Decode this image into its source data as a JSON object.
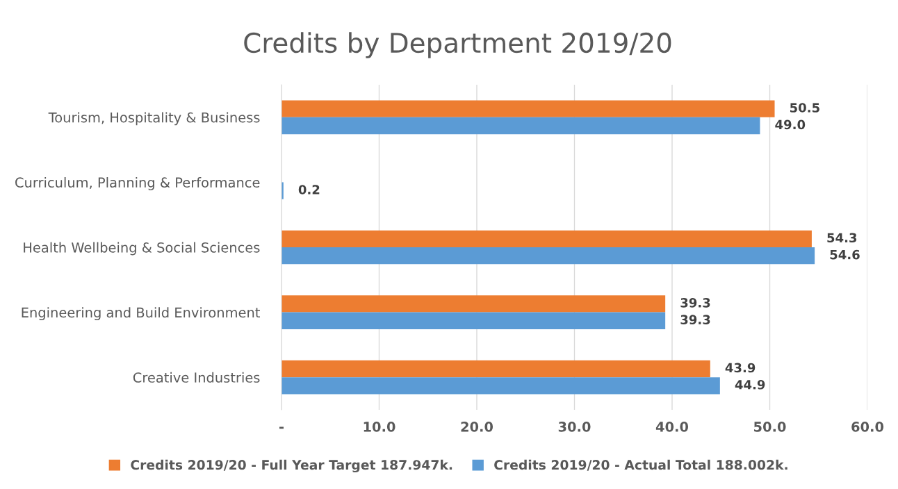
{
  "chart_data": {
    "type": "bar",
    "orientation": "horizontal",
    "title": "Credits by Department 2019/20",
    "categories": [
      "Tourism, Hospitality & Business",
      "Curriculum, Planning & Performance",
      "Health Wellbeing & Social Sciences",
      "Engineering and Build Environment",
      "Creative Industries"
    ],
    "series": [
      {
        "name": "Credits 2019/20 - Full Year Target 187.947k.",
        "color": "#ed7d31",
        "values": [
          50.5,
          null,
          54.3,
          39.3,
          43.9
        ],
        "value_labels": [
          "50.5",
          null,
          "54.3",
          "39.3",
          "43.9"
        ]
      },
      {
        "name": "Credits 2019/20 - Actual Total 188.002k.",
        "color": "#5b9bd5",
        "values": [
          49.0,
          0.2,
          54.6,
          39.3,
          44.9
        ],
        "value_labels": [
          "49.0",
          "0.2",
          "54.6",
          "39.3",
          "44.9"
        ]
      }
    ],
    "xlim": [
      0,
      60
    ],
    "xticks": [
      {
        "value": 0,
        "label": "-"
      },
      {
        "value": 10,
        "label": "10.0"
      },
      {
        "value": 20,
        "label": "20.0"
      },
      {
        "value": 30,
        "label": "30.0"
      },
      {
        "value": 40,
        "label": "40.0"
      },
      {
        "value": 50,
        "label": "50.0"
      },
      {
        "value": 60,
        "label": "60.0"
      }
    ],
    "grid": "x",
    "legend": "bottom"
  }
}
